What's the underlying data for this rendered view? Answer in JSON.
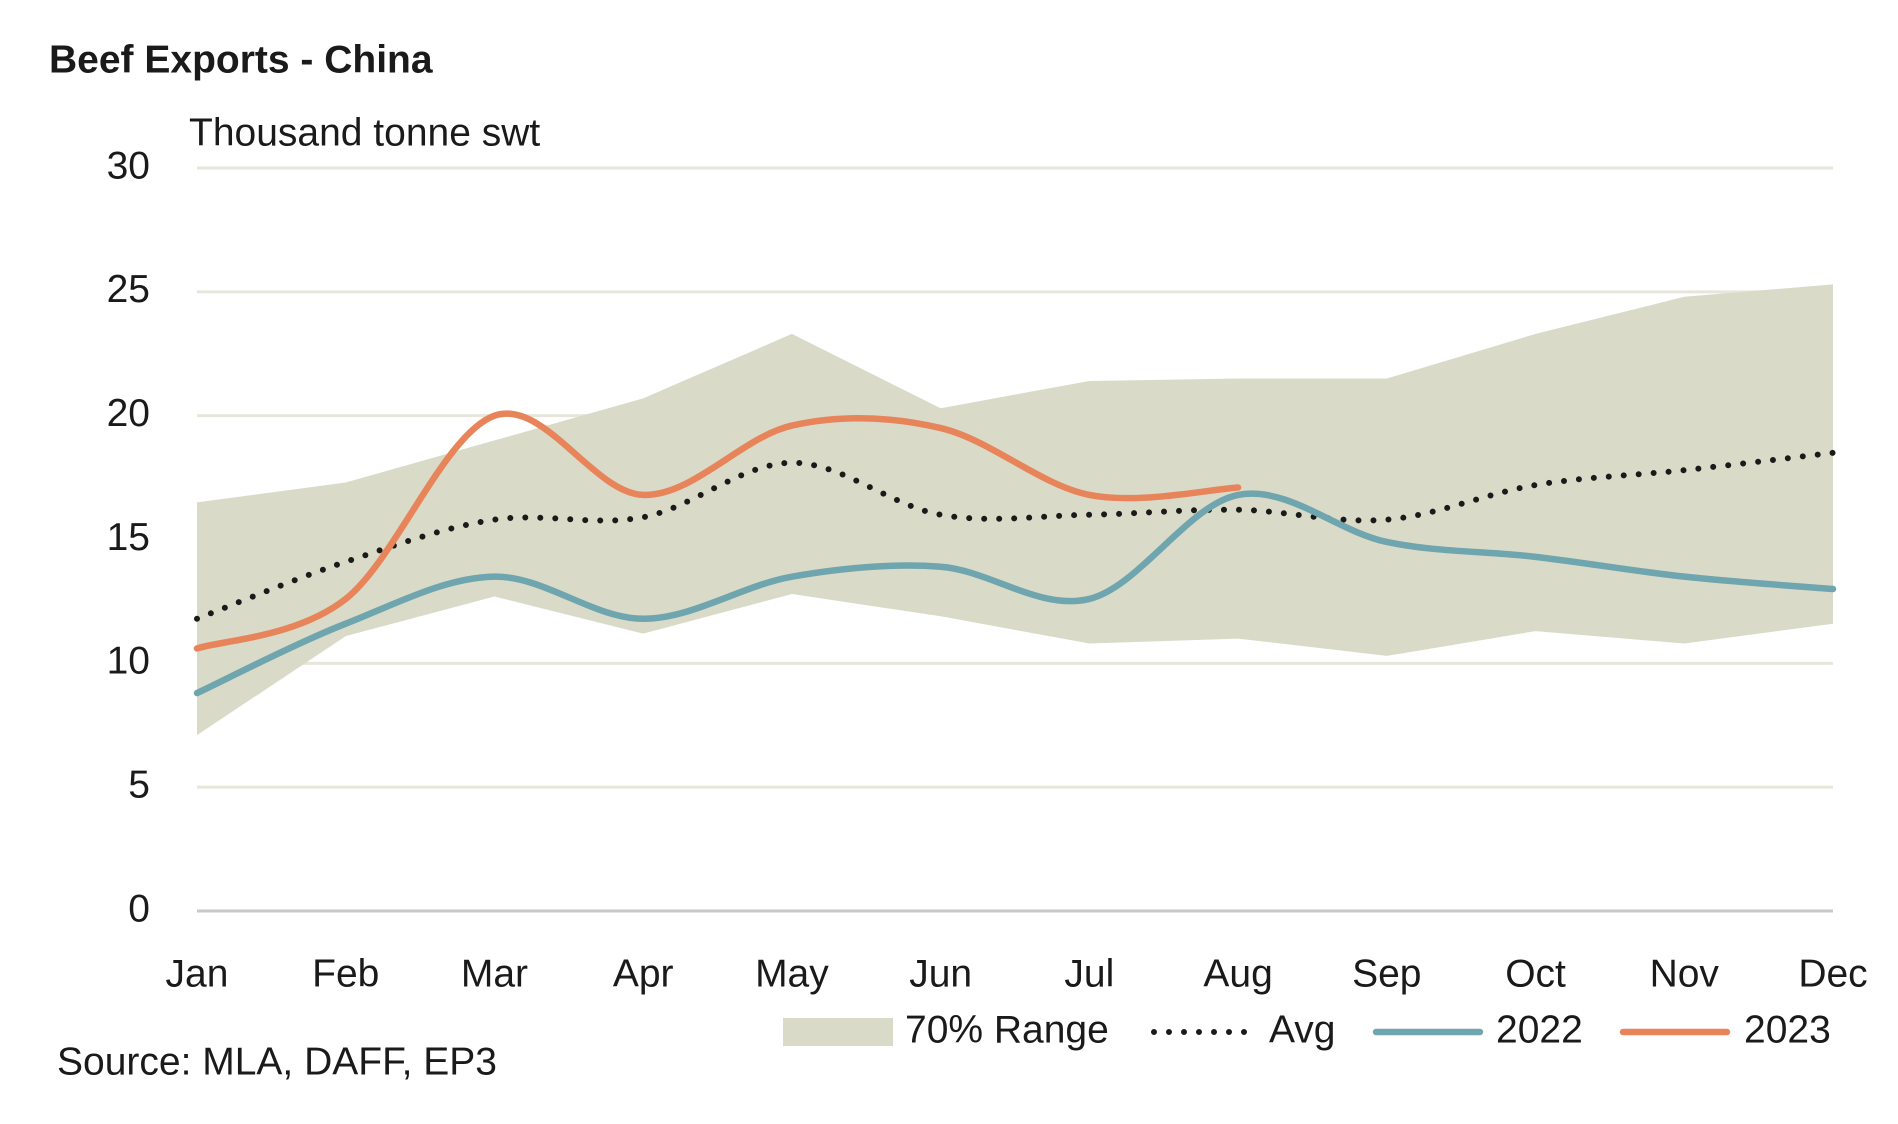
{
  "chart_data": {
    "type": "line",
    "title": "Beef Exports - China",
    "subtitle": "Thousand tonne swt",
    "source": "Source: MLA, DAFF, EP3",
    "categories": [
      "Jan",
      "Feb",
      "Mar",
      "Apr",
      "May",
      "Jun",
      "Jul",
      "Aug",
      "Sep",
      "Oct",
      "Nov",
      "Dec"
    ],
    "ylim": [
      0,
      30
    ],
    "yticks": [
      0,
      5,
      10,
      15,
      20,
      25,
      30
    ],
    "grid": true,
    "legend": "bottom-right",
    "series": [
      {
        "name": "70% Range",
        "type": "band",
        "color": "#d9dbc8",
        "upper": [
          16.5,
          17.3,
          19.0,
          20.7,
          23.3,
          20.3,
          21.4,
          21.5,
          21.5,
          23.3,
          24.8,
          25.3
        ],
        "lower": [
          7.1,
          11.1,
          12.7,
          11.2,
          12.8,
          11.9,
          10.8,
          11.0,
          10.3,
          11.3,
          10.8,
          11.6
        ]
      },
      {
        "name": "Avg",
        "color": "#1a1a1a",
        "dotted": true,
        "values": [
          11.8,
          14.1,
          15.8,
          15.9,
          18.1,
          16.0,
          16.0,
          16.2,
          15.8,
          17.2,
          17.8,
          18.5
        ]
      },
      {
        "name": "2022",
        "color": "#6fa5ae",
        "values": [
          8.8,
          11.6,
          13.5,
          11.8,
          13.5,
          13.9,
          12.6,
          16.8,
          14.9,
          14.3,
          13.5,
          13.0
        ]
      },
      {
        "name": "2023",
        "color": "#e8845a",
        "values": [
          10.6,
          12.6,
          20.0,
          16.8,
          19.6,
          19.5,
          16.8,
          17.1,
          null,
          null,
          null,
          null
        ]
      }
    ]
  }
}
